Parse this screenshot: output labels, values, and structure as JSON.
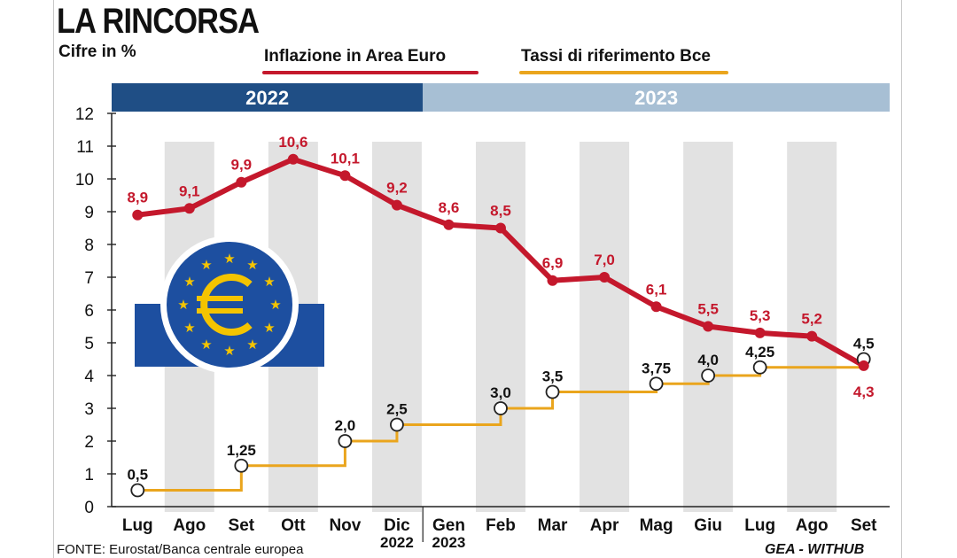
{
  "title": "LA RINCORSA",
  "unit_label": "Cifre in %",
  "source": "FONTE: Eurostat/Banca centrale europea",
  "credit": "GEA - WITHUB",
  "colors": {
    "inflation": "#c4182c",
    "rates": "#eaa51d",
    "band_2022": "#1f4e85",
    "band_2023": "#a7bfd4",
    "stripe": "#e2e2e2",
    "ecb_blue": "#1d4fa0",
    "ecb_yellow": "#f4c400"
  },
  "chart_data": {
    "type": "line",
    "ylim": [
      0,
      12
    ],
    "yticks": [
      "0",
      "1",
      "2",
      "3",
      "4",
      "5",
      "6",
      "7",
      "8",
      "9",
      "10",
      "11",
      "12"
    ],
    "year_bands": [
      {
        "label": "2022",
        "from": 0,
        "to": 5
      },
      {
        "label": "2023",
        "from": 6,
        "to": 14
      }
    ],
    "categories": [
      "Lug",
      "Ago",
      "Set",
      "Ott",
      "Nov",
      "Dic",
      "Gen",
      "Feb",
      "Mar",
      "Apr",
      "Mag",
      "Giu",
      "Lug",
      "Ago",
      "Set"
    ],
    "category_years": {
      "5": "2022",
      "6": "2023"
    },
    "series": [
      {
        "name": "Inflazione in Area Euro",
        "kind": "line",
        "values": [
          8.9,
          9.1,
          9.9,
          10.6,
          10.1,
          9.2,
          8.6,
          8.5,
          6.9,
          7.0,
          6.1,
          5.5,
          5.3,
          5.2,
          4.3
        ],
        "labels": [
          "8,9",
          "9,1",
          "9,9",
          "10,6",
          "10,1",
          "9,2",
          "8,6",
          "8,5",
          "6,9",
          "7,0",
          "6,1",
          "5,5",
          "5,3",
          "5,2",
          "4,3"
        ]
      },
      {
        "name": "Tassi di riferimento Bce",
        "kind": "step",
        "changes": [
          {
            "x": 0,
            "value": 0.5,
            "label": "0,5"
          },
          {
            "x": 2,
            "value": 1.25,
            "label": "1,25"
          },
          {
            "x": 4,
            "value": 2.0,
            "label": "2,0"
          },
          {
            "x": 5,
            "value": 2.5,
            "label": "2,5"
          },
          {
            "x": 7,
            "value": 3.0,
            "label": "3,0"
          },
          {
            "x": 8,
            "value": 3.5,
            "label": "3,5"
          },
          {
            "x": 10,
            "value": 3.75,
            "label": "3,75"
          },
          {
            "x": 11,
            "value": 4.0,
            "label": "4,0"
          },
          {
            "x": 12,
            "value": 4.25,
            "label": "4,25"
          },
          {
            "x": 14,
            "value": 4.5,
            "label": "4,5"
          }
        ]
      }
    ]
  }
}
